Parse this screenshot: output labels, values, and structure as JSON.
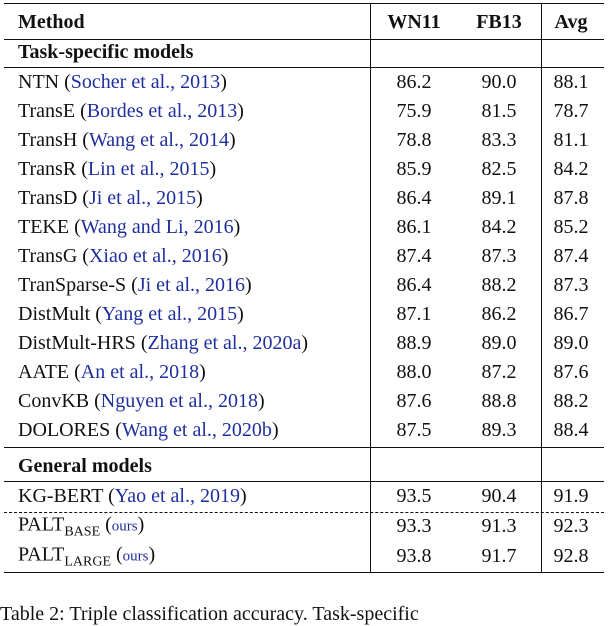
{
  "header": {
    "method": "Method",
    "wn11": "WN11",
    "fb13": "FB13",
    "avg": "Avg"
  },
  "sections": [
    {
      "title": "Task-specific models",
      "rows": [
        {
          "method": "NTN",
          "citation": "Socher et al., 2013",
          "wn11": "86.2",
          "fb13": "90.0",
          "avg": "88.1"
        },
        {
          "method": "TransE",
          "citation": "Bordes et al., 2013",
          "wn11": "75.9",
          "fb13": "81.5",
          "avg": "78.7"
        },
        {
          "method": "TransH",
          "citation": "Wang et al., 2014",
          "wn11": "78.8",
          "fb13": "83.3",
          "avg": "81.1"
        },
        {
          "method": "TransR",
          "citation": "Lin et al., 2015",
          "wn11": "85.9",
          "fb13": "82.5",
          "avg": "84.2"
        },
        {
          "method": "TransD",
          "citation": "Ji et al., 2015",
          "wn11": "86.4",
          "fb13": "89.1",
          "avg": "87.8"
        },
        {
          "method": "TEKE",
          "citation": "Wang and Li, 2016",
          "wn11": "86.1",
          "fb13": "84.2",
          "avg": "85.2"
        },
        {
          "method": "TransG",
          "citation": "Xiao et al., 2016",
          "wn11": "87.4",
          "fb13": "87.3",
          "avg": "87.4"
        },
        {
          "method": "TranSparse-S",
          "citation": "Ji et al., 2016",
          "wn11": "86.4",
          "fb13": "88.2",
          "avg": "87.3"
        },
        {
          "method": "DistMult",
          "citation": "Yang et al., 2015",
          "wn11": "87.1",
          "fb13": "86.2",
          "avg": "86.7"
        },
        {
          "method": "DistMult-HRS",
          "citation": "Zhang et al., 2020a",
          "wn11": "88.9",
          "fb13": "89.0",
          "avg": "89.0"
        },
        {
          "method": "AATE",
          "citation": "An et al., 2018",
          "wn11": "88.0",
          "fb13": "87.2",
          "avg": "87.6"
        },
        {
          "method": "ConvKB",
          "citation": "Nguyen et al., 2018",
          "wn11": "87.6",
          "fb13": "88.8",
          "avg": "88.2"
        },
        {
          "method": "DOLORES",
          "citation": "Wang et al., 2020b",
          "wn11": "87.5",
          "fb13": "89.3",
          "avg": "88.4"
        }
      ]
    },
    {
      "title": "General models",
      "rows": [
        {
          "method": "KG-BERT",
          "citation": "Yao et al., 2019",
          "wn11": "93.5",
          "fb13": "90.4",
          "avg": "91.9"
        },
        {
          "method": "PALT",
          "subscript": "BASE",
          "citation": "ours",
          "wn11": "93.3",
          "fb13": "91.3",
          "avg": "92.3"
        },
        {
          "method": "PALT",
          "subscript": "LARGE",
          "citation": "ours",
          "wn11": "93.8",
          "fb13": "91.7",
          "avg": "92.8"
        }
      ]
    }
  ],
  "caption": "Table 2: Triple classification accuracy. Task-specific"
}
